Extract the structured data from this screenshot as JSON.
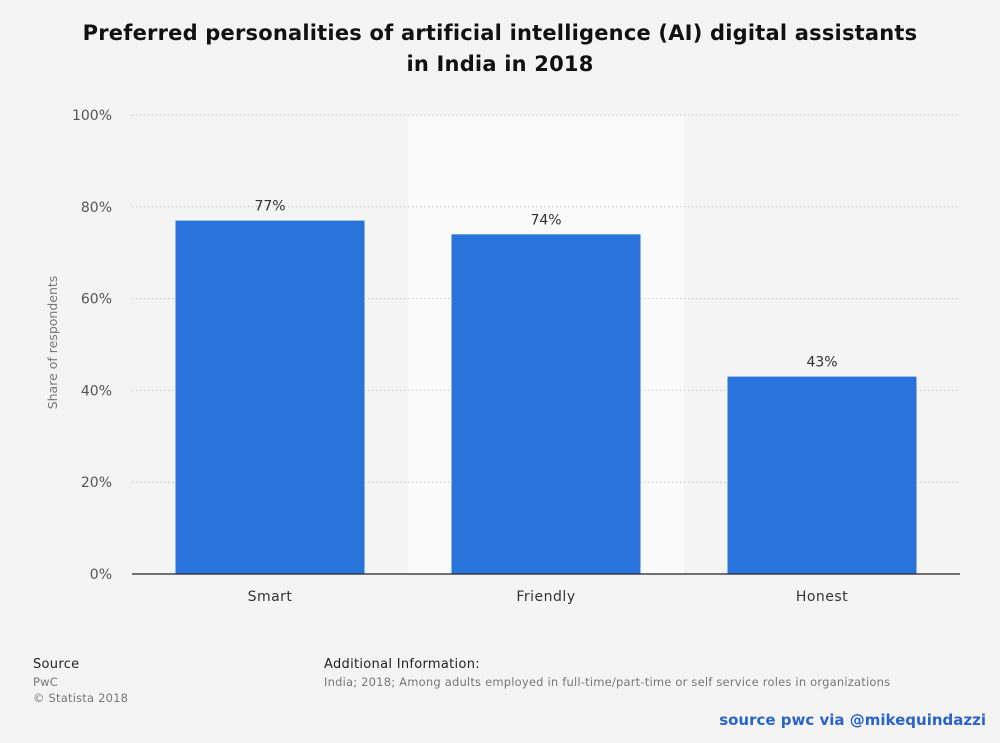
{
  "title_lines": [
    "Preferred personalities of artificial intelligence (AI) digital assistants",
    "in India in 2018"
  ],
  "chart_data": {
    "type": "bar",
    "title": "Preferred personalities of artificial intelligence (AI) digital assistants in India in 2018",
    "categories": [
      "Smart",
      "Friendly",
      "Honest"
    ],
    "values": [
      77,
      74,
      43
    ],
    "value_labels": [
      "77%",
      "74%",
      "43%"
    ],
    "xlabel": "",
    "ylabel": "Share of respondents",
    "ylim": [
      0,
      100
    ],
    "yticks": [
      0,
      20,
      40,
      60,
      80,
      100
    ],
    "ytick_labels": [
      "0%",
      "20%",
      "40%",
      "60%",
      "80%",
      "100%"
    ],
    "grid": true,
    "bar_color": "#2874dc",
    "highlight_category": "Friendly"
  },
  "footer": {
    "source_heading": "Source",
    "source_lines": [
      "PwC",
      "© Statista 2018"
    ],
    "info_heading": "Additional Information:",
    "info_text": "India; 2018; Among adults employed in full-time/part-time or self service roles in organizations"
  },
  "credit": "source pwc via @mikequindazzi"
}
